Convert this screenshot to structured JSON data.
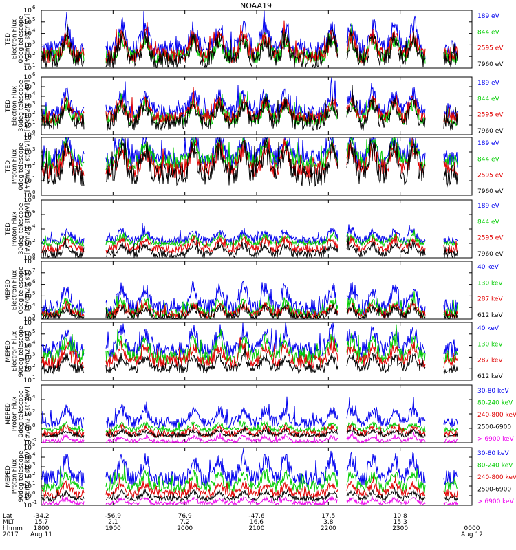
{
  "chart_data": {
    "type": "line",
    "title": "NOAA19",
    "xlabel": "",
    "xlim": [
      1800,
      2400
    ],
    "x_tick_values": [
      1800,
      1900,
      2000,
      2100,
      2200,
      2300
    ],
    "panels": [
      {
        "id": "ted-electron-0deg",
        "ylabel_lines": [
          "TED",
          "Electron Flux",
          "0deg telescope",
          "[#/cm2-s-str-eV]"
        ],
        "y_exp_min": 1,
        "y_exp_max": 6,
        "y_tick_exps": [
          1,
          2,
          3,
          4,
          5,
          6
        ],
        "series": [
          {
            "name": "7960 eV",
            "color": "#000000",
            "level": 1.7,
            "spread": 1.1
          },
          {
            "name": "2595 eV",
            "color": "#e00000",
            "level": 2.1,
            "spread": 1.0
          },
          {
            "name": "844 eV",
            "color": "#00cc00",
            "level": 2.0,
            "spread": 0.9
          },
          {
            "name": "189 eV",
            "color": "#0000ee",
            "level": 2.6,
            "spread": 1.2
          }
        ]
      },
      {
        "id": "ted-electron-30deg",
        "ylabel_lines": [
          "TED",
          "Electron Flux",
          "30deg telescope",
          "[#/cm2-s-str-eV]"
        ],
        "y_exp_min": 0,
        "y_exp_max": 6,
        "y_tick_exps": [
          0,
          1,
          2,
          3,
          4,
          5,
          6
        ],
        "series": [
          {
            "name": "7960 eV",
            "color": "#000000",
            "level": 1.3,
            "spread": 1.2
          },
          {
            "name": "2595 eV",
            "color": "#e00000",
            "level": 1.8,
            "spread": 1.0
          },
          {
            "name": "844 eV",
            "color": "#00cc00",
            "level": 1.6,
            "spread": 1.0
          },
          {
            "name": "189 eV",
            "color": "#0000ee",
            "level": 2.4,
            "spread": 1.1
          }
        ]
      },
      {
        "id": "ted-proton-0deg",
        "ylabel_lines": [
          "TED",
          "Proton Flux",
          "0deg telescope",
          "[#/cm2-s-str-eV]"
        ],
        "y_exp_min": 0,
        "y_exp_max": 4,
        "y_tick_exps": [
          0,
          1,
          2,
          3,
          4
        ],
        "series": [
          {
            "name": "7960 eV",
            "color": "#000000",
            "level": 1.4,
            "spread": 1.1
          },
          {
            "name": "2595 eV",
            "color": "#e00000",
            "level": 1.8,
            "spread": 0.9
          },
          {
            "name": "844 eV",
            "color": "#00cc00",
            "level": 2.3,
            "spread": 0.8
          },
          {
            "name": "189 eV",
            "color": "#0000ee",
            "level": 2.5,
            "spread": 0.9
          }
        ]
      },
      {
        "id": "ted-proton-30deg",
        "ylabel_lines": [
          "TED",
          "Proton Flux",
          "30deg telescope",
          "[#/cm2-s-str-eV]"
        ],
        "y_exp_min": 0,
        "y_exp_max": 8,
        "y_tick_exps": [
          0,
          2,
          4,
          6,
          8
        ],
        "series": [
          {
            "name": "7960 eV",
            "color": "#000000",
            "level": 0.5,
            "spread": 0.8
          },
          {
            "name": "2595 eV",
            "color": "#e00000",
            "level": 1.2,
            "spread": 0.8
          },
          {
            "name": "844 eV",
            "color": "#00cc00",
            "level": 2.0,
            "spread": 0.6
          },
          {
            "name": "189 eV",
            "color": "#0000ee",
            "level": 2.4,
            "spread": 0.8
          }
        ]
      },
      {
        "id": "meped-electron-0deg",
        "ylabel_lines": [
          "MEPED",
          "Electron Flux",
          "0deg telescope",
          "[#/cm2-s-str]"
        ],
        "y_exp_min": 3,
        "y_exp_max": 8,
        "y_tick_exps": [
          3,
          4,
          5,
          6,
          7,
          8
        ],
        "series": [
          {
            "name": "612 keV",
            "color": "#000000",
            "level": 3.2,
            "spread": 0.5
          },
          {
            "name": "287 keV",
            "color": "#e00000",
            "level": 3.4,
            "spread": 0.5
          },
          {
            "name": "130 keV",
            "color": "#00cc00",
            "level": 3.5,
            "spread": 0.6
          },
          {
            "name": "40 keV",
            "color": "#0000ee",
            "level": 4.0,
            "spread": 1.0
          }
        ]
      },
      {
        "id": "meped-electron-90deg",
        "ylabel_lines": [
          "MEPED",
          "Electron Flux",
          "90deg telescope",
          "[#/cm2-s-str]"
        ],
        "y_exp_min": 1,
        "y_exp_max": 6,
        "y_tick_exps": [
          1,
          2,
          3,
          4,
          5,
          6
        ],
        "series": [
          {
            "name": "612 keV",
            "color": "#000000",
            "level": 2.0,
            "spread": 0.6
          },
          {
            "name": "287 keV",
            "color": "#e00000",
            "level": 2.6,
            "spread": 0.8
          },
          {
            "name": "130 keV",
            "color": "#00cc00",
            "level": 3.0,
            "spread": 0.9
          },
          {
            "name": "40 keV",
            "color": "#0000ee",
            "level": 3.6,
            "spread": 1.0
          }
        ]
      },
      {
        "id": "meped-proton-0deg",
        "ylabel_lines": [
          "MEPED",
          "Proton Flux",
          "0deg telescope",
          "[#/cm2-s-str-keV]"
        ],
        "y_exp_min": -2,
        "y_exp_max": 6,
        "y_tick_exps": [
          -2,
          0,
          2,
          4
        ],
        "series": [
          {
            "name": "> 6900 keV",
            "color": "#ee00ee",
            "level": -1.8,
            "spread": 0.4
          },
          {
            "name": "2500-6900",
            "color": "#000000",
            "level": -1.0,
            "spread": 0.4
          },
          {
            "name": "240-800 keV",
            "color": "#e00000",
            "level": -0.8,
            "spread": 0.6
          },
          {
            "name": "80-240 keV",
            "color": "#00cc00",
            "level": -0.2,
            "spread": 0.5
          },
          {
            "name": "30-80 keV",
            "color": "#0000ee",
            "level": 0.8,
            "spread": 1.1
          }
        ]
      },
      {
        "id": "meped-proton-90deg",
        "ylabel_lines": [
          "MEPED",
          "Proton Flux",
          "90deg telescope",
          "[#/cm2-s-str-keV]"
        ],
        "y_exp_min": -1,
        "y_exp_max": 5,
        "y_tick_exps": [
          -1,
          0,
          1,
          2,
          3,
          4,
          5
        ],
        "series": [
          {
            "name": "> 6900 keV",
            "color": "#ee00ee",
            "level": -0.8,
            "spread": 0.3
          },
          {
            "name": "2500-6900",
            "color": "#000000",
            "level": -0.3,
            "spread": 0.4
          },
          {
            "name": "240-800 keV",
            "color": "#e00000",
            "level": 0.2,
            "spread": 0.6
          },
          {
            "name": "80-240 keV",
            "color": "#00cc00",
            "level": 0.9,
            "spread": 0.8
          },
          {
            "name": "30-80 keV",
            "color": "#0000ee",
            "level": 1.8,
            "spread": 1.2
          }
        ]
      }
    ],
    "bottom_axis": {
      "row_labels": [
        "Lat",
        "MLT",
        "hhmm",
        "2017"
      ],
      "columns": [
        {
          "lat": "-34.2",
          "mlt": "15.7",
          "hhmm": "1800",
          "date": "Aug 11"
        },
        {
          "lat": "-56.9",
          "mlt": "2.1",
          "hhmm": "1900",
          "date": ""
        },
        {
          "lat": "76.9",
          "mlt": "7.2",
          "hhmm": "2000",
          "date": ""
        },
        {
          "lat": "-47.6",
          "mlt": "16.6",
          "hhmm": "2100",
          "date": ""
        },
        {
          "lat": "17.5",
          "mlt": "3.8",
          "hhmm": "2200",
          "date": ""
        },
        {
          "lat": "10.8",
          "mlt": "15.3",
          "hhmm": "2300",
          "date": ""
        },
        {
          "lat": "",
          "mlt": "",
          "hhmm": "0000",
          "date": "Aug 12"
        }
      ]
    }
  }
}
